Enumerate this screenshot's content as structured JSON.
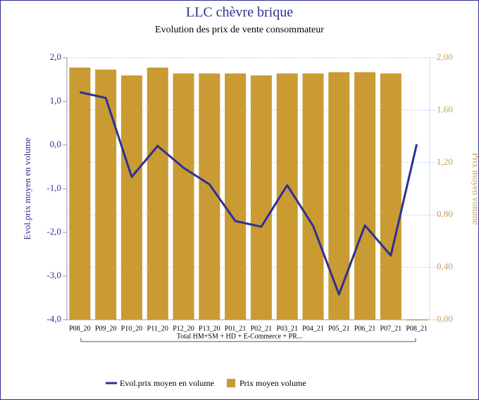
{
  "chart_data": {
    "type": "combo",
    "title": "LLC chèvre brique",
    "subtitle": "Evolution des prix de vente consommateur",
    "y_label": "Evol.prix moyen en volume",
    "y2_label": "Prix moyen volume",
    "group_label": "Total HM+SM + HD + E-Commerce + PR...",
    "categories": [
      "P08_20",
      "P09_20",
      "P10_20",
      "P11_20",
      "P12_20",
      "P13_20",
      "P01_21",
      "P02_21",
      "P03_21",
      "P04_21",
      "P05_21",
      "P06_21",
      "P07_21",
      "P08_21"
    ],
    "series": [
      {
        "name": "Evol.prix moyen en volume",
        "type": "line",
        "color": "#2e3192",
        "axis": "y",
        "values": [
          1.21,
          1.08,
          -0.73,
          -0.02,
          -0.52,
          -0.9,
          -1.74,
          -1.87,
          -0.92,
          -1.85,
          -3.42,
          -1.84,
          -2.53,
          0.02
        ]
      },
      {
        "name": "Prix moyen volume",
        "type": "bar",
        "color": "#c99b32",
        "axis": "y2",
        "values": [
          1.925,
          1.91,
          1.865,
          1.925,
          1.88,
          1.88,
          1.88,
          1.865,
          1.88,
          1.88,
          1.89,
          1.89,
          1.88,
          0
        ]
      }
    ],
    "ylim": [
      -4,
      2
    ],
    "yticks": [
      {
        "value": 2,
        "label": "2,0"
      },
      {
        "value": 1,
        "label": "1,0"
      },
      {
        "value": 0,
        "label": "0,0"
      },
      {
        "value": -1,
        "label": "-1,0"
      },
      {
        "value": -2,
        "label": "-2,0"
      },
      {
        "value": -3,
        "label": "-3,0"
      },
      {
        "value": -4,
        "label": "-4,0"
      }
    ],
    "y2lim": [
      0,
      2
    ],
    "y2ticks": [
      {
        "value": 2,
        "label": "2,00"
      },
      {
        "value": 1.6,
        "label": "1,60"
      },
      {
        "value": 1.2,
        "label": "1,20"
      },
      {
        "value": 0.8,
        "label": "0,80"
      },
      {
        "value": 0.4,
        "label": "0,40"
      },
      {
        "value": 0,
        "label": "0,00"
      }
    ],
    "grid": true
  }
}
